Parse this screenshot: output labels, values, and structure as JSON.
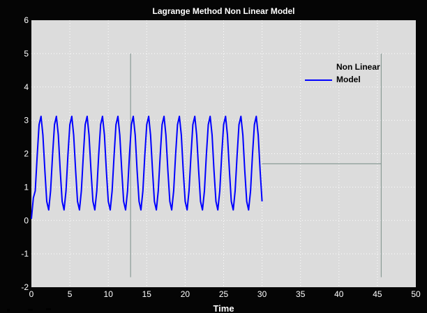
{
  "window": {
    "title": "Lagrange Method Non Linear Model"
  },
  "colors": {
    "figure_background": "#050505",
    "plot_background": "#dcdcdc",
    "grid": "#ffffff",
    "series": "#0000ff",
    "marker_lines": "#8a9b96",
    "axis_text": "#ffffff"
  },
  "chart_data": {
    "type": "line",
    "title": "Lagrange Method Non Linear Model",
    "xlabel": "Time",
    "ylabel": "",
    "xlim": [
      0,
      50
    ],
    "ylim": [
      -2,
      6
    ],
    "xticks": [
      0,
      5,
      10,
      15,
      20,
      25,
      30,
      35,
      40,
      45,
      50
    ],
    "yticks": [
      -2,
      -1,
      0,
      1,
      2,
      3,
      4,
      5,
      6
    ],
    "grid": true,
    "legend": "top-right",
    "series": [
      {
        "name": "Non Linear Model",
        "color": "#0000ff",
        "period": 2,
        "phase_start": 0.7,
        "amplitude": 1.42,
        "offset": 1.72,
        "x_start": 0,
        "x_end": 30
      }
    ],
    "annotations": [
      {
        "kind": "vertical-line",
        "x": 12.9,
        "y_from": -1.7,
        "y_to": 5.0
      },
      {
        "kind": "vertical-line",
        "x": 45.5,
        "y_from": -1.7,
        "y_to": 5.0
      },
      {
        "kind": "horizontal-line",
        "y": 1.7,
        "x_from": 30,
        "x_to": 45.5
      }
    ]
  }
}
